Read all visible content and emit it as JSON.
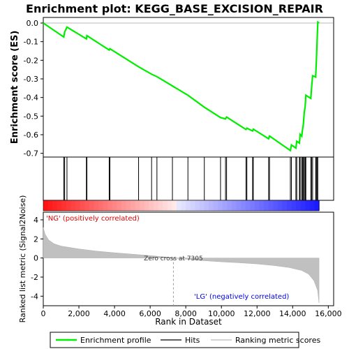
{
  "chart_data": {
    "type": "line",
    "title": "Enrichment plot: KEGG_BASE_EXCISION_REPAIR",
    "es_panel": {
      "ylabel": "Enrichment score (ES)",
      "ylim": [
        -0.72,
        0.03
      ],
      "yticks": [
        "0.0",
        "-0.1",
        "-0.2",
        "-0.3",
        "-0.4",
        "-0.5",
        "-0.6",
        "-0.7"
      ],
      "ytick_values": [
        0.0,
        -0.1,
        -0.2,
        -0.3,
        -0.4,
        -0.5,
        -0.6,
        -0.7
      ],
      "series_name": "Enrichment profile",
      "line_color": "#00ee00",
      "points": [
        [
          0,
          0.0
        ],
        [
          1150,
          -0.075
        ],
        [
          1200,
          -0.048
        ],
        [
          1330,
          -0.022
        ],
        [
          2420,
          -0.085
        ],
        [
          2450,
          -0.068
        ],
        [
          3700,
          -0.145
        ],
        [
          3740,
          -0.138
        ],
        [
          5350,
          -0.235
        ],
        [
          6080,
          -0.275
        ],
        [
          6380,
          -0.288
        ],
        [
          7250,
          -0.338
        ],
        [
          8120,
          -0.388
        ],
        [
          9040,
          -0.452
        ],
        [
          9950,
          -0.508
        ],
        [
          10230,
          -0.515
        ],
        [
          10290,
          -0.505
        ],
        [
          11380,
          -0.572
        ],
        [
          11430,
          -0.565
        ],
        [
          11750,
          -0.58
        ],
        [
          11790,
          -0.57
        ],
        [
          12650,
          -0.622
        ],
        [
          12700,
          -0.607
        ],
        [
          13870,
          -0.685
        ],
        [
          13930,
          -0.655
        ],
        [
          14180,
          -0.672
        ],
        [
          14230,
          -0.635
        ],
        [
          14380,
          -0.645
        ],
        [
          14420,
          -0.598
        ],
        [
          14510,
          -0.608
        ],
        [
          14550,
          -0.575
        ],
        [
          14600,
          -0.545
        ],
        [
          14650,
          -0.48
        ],
        [
          14700,
          -0.45
        ],
        [
          14720,
          -0.42
        ],
        [
          14740,
          -0.388
        ],
        [
          15020,
          -0.405
        ],
        [
          15060,
          -0.35
        ],
        [
          15120,
          -0.283
        ],
        [
          15290,
          -0.29
        ],
        [
          15330,
          -0.205
        ],
        [
          15370,
          -0.1
        ],
        [
          15410,
          0.005
        ],
        [
          15480,
          0.0
        ]
      ]
    },
    "hits_panel": {
      "series_name": "Hits",
      "hit_positions": [
        1150,
        1200,
        1330,
        2420,
        2450,
        3700,
        3740,
        5350,
        6080,
        6380,
        7250,
        8120,
        9040,
        9950,
        10230,
        10290,
        11380,
        11430,
        11750,
        11790,
        12650,
        12700,
        13870,
        13930,
        14180,
        14230,
        14380,
        14420,
        14510,
        14550,
        14600,
        14650,
        14700,
        14720,
        14740,
        15020,
        15060,
        15120,
        15290,
        15330,
        15370,
        15410
      ]
    },
    "metric_panel": {
      "ylabel": "Ranked list metric (Signal2Noise)",
      "xlabel": "Rank in Dataset",
      "series_name": "Ranking metric scores",
      "ylim": [
        -5,
        4.8
      ],
      "yticks": [
        "4",
        "2",
        "0",
        "-2",
        "-4"
      ],
      "ytick_values": [
        4,
        2,
        0,
        -2,
        -4
      ],
      "xlim": [
        0,
        16300
      ],
      "xticks": [
        "0",
        "2,000",
        "4,000",
        "6,000",
        "8,000",
        "10,000",
        "12,000",
        "14,000",
        "16,000"
      ],
      "xtick_values": [
        0,
        2000,
        4000,
        6000,
        8000,
        10000,
        12000,
        14000,
        16000
      ],
      "zero_cross_label": "Zero cross at 7305",
      "zero_cross": 7305,
      "pos_label": "'NG' (positively correlated)",
      "neg_label": "'LG' (negatively correlated)",
      "metric_profile": [
        [
          0,
          3.2
        ],
        [
          100,
          2.5
        ],
        [
          300,
          1.9
        ],
        [
          600,
          1.5
        ],
        [
          1000,
          1.25
        ],
        [
          2000,
          0.95
        ],
        [
          3000,
          0.72
        ],
        [
          4000,
          0.55
        ],
        [
          5000,
          0.4
        ],
        [
          6000,
          0.25
        ],
        [
          7000,
          0.08
        ],
        [
          7305,
          0.0
        ],
        [
          8000,
          -0.12
        ],
        [
          9000,
          -0.28
        ],
        [
          10000,
          -0.4
        ],
        [
          11000,
          -0.5
        ],
        [
          12000,
          -0.62
        ],
        [
          13000,
          -0.8
        ],
        [
          13800,
          -1.0
        ],
        [
          14500,
          -1.3
        ],
        [
          14900,
          -1.7
        ],
        [
          15200,
          -2.4
        ],
        [
          15400,
          -3.4
        ],
        [
          15480,
          -4.7
        ]
      ],
      "n_genes": 15480
    },
    "legend": {
      "items": [
        "Enrichment profile",
        "Hits",
        "Ranking metric scores"
      ]
    }
  }
}
